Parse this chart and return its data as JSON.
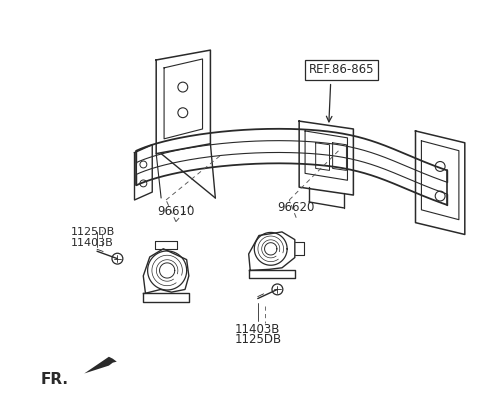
{
  "background_color": "#ffffff",
  "line_color": "#2a2a2a",
  "text_color": "#2a2a2a",
  "ref_label": "REF.86-865",
  "label_96610": "96610",
  "label_96620": "96620",
  "label_1125DB_top": "1125DB",
  "label_11403B_top": "11403B",
  "label_11403B_bot": "11403B",
  "label_1125DB_bot": "1125DB",
  "fr_label": "FR."
}
